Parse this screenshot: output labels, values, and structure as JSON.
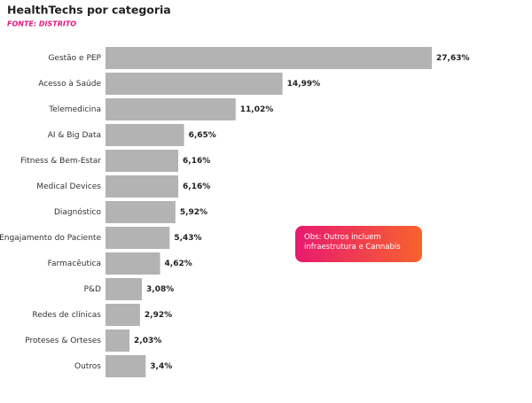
{
  "chart_data": {
    "type": "barh",
    "title": "HealthTechs por categoria",
    "subtitle": "FONTE: DISTRITO",
    "categories": [
      "Gestão e PEP",
      "Acesso à Saúde",
      "Telemedicina",
      "AI & Big Data",
      "Fitness & Bem-Estar",
      "Medical Devices",
      "Diagnóstico",
      "Engajamento do Paciente",
      "Farmacêutica",
      "P&D",
      "Redes de clínicas",
      "Proteses & Orteses",
      "Outros"
    ],
    "values": [
      27.63,
      14.99,
      11.02,
      6.65,
      6.16,
      6.16,
      5.92,
      5.43,
      4.62,
      3.08,
      2.92,
      2.03,
      3.4
    ],
    "value_labels": [
      "27,63%",
      "14,99%",
      "11,02%",
      "6,65%",
      "6,16%",
      "6,16%",
      "5,92%",
      "5,43%",
      "4,62%",
      "3,08%",
      "2,92%",
      "2,03%",
      "3,4%"
    ],
    "color": "#b3b3b3",
    "annotation": "Obs: Outros incluem infraestrutura e Cannabis"
  }
}
